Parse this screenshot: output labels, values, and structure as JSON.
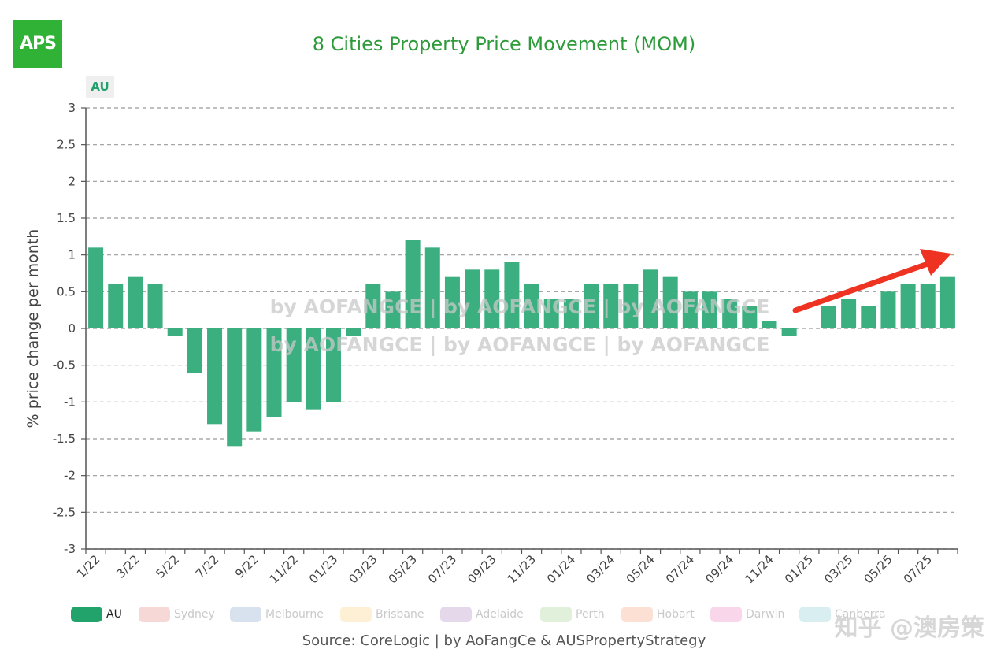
{
  "logo": "APS",
  "title": "8 Cities Property Price Movement (MOM)",
  "tag": "AU",
  "source": "Source: CoreLogic | by AoFangCe & AUSPropertyStrategy",
  "watermark_lines": [
    "by AOFANGCE | by AOFANGCE | by AOFANGCE",
    "by AOFANGCE | by AOFANGCE | by AOFANGCE"
  ],
  "corner_watermark": "知乎 @澳房策",
  "colors": {
    "bar": "#3baf80",
    "arrow": "#ee3322",
    "grid": "#999999"
  },
  "legend": [
    {
      "label": "AU",
      "color": "#22a36c",
      "active": true
    },
    {
      "label": "Sydney",
      "color": "#f6d8d6",
      "active": false
    },
    {
      "label": "Melbourne",
      "color": "#d8e2ee",
      "active": false
    },
    {
      "label": "Brisbane",
      "color": "#fdf0d4",
      "active": false
    },
    {
      "label": "Adelaide",
      "color": "#e4d8ea",
      "active": false
    },
    {
      "label": "Perth",
      "color": "#e1f0db",
      "active": false
    },
    {
      "label": "Hobart",
      "color": "#fde0d4",
      "active": false
    },
    {
      "label": "Darwin",
      "color": "#f9d6ea",
      "active": false
    },
    {
      "label": "Canberra",
      "color": "#d8eef0",
      "active": false
    }
  ],
  "chart_data": {
    "type": "bar",
    "title": "8 Cities Property Price Movement (MOM)",
    "ylabel": "% price change per month",
    "xlabel": "",
    "ylim": [
      -3,
      3
    ],
    "yticks": [
      "3",
      "2.5",
      "2",
      "1.5",
      "1",
      "0.5",
      "0",
      "-0.5",
      "-1",
      "-1.5",
      "-2",
      "-2.5",
      "-3"
    ],
    "grid": true,
    "categories": [
      "1/22",
      "2/22",
      "3/22",
      "4/22",
      "5/22",
      "6/22",
      "7/22",
      "8/22",
      "9/22",
      "10/22",
      "11/22",
      "12/22",
      "01/23",
      "02/23",
      "03/23",
      "04/23",
      "05/23",
      "06/23",
      "07/23",
      "08/23",
      "09/23",
      "10/23",
      "11/23",
      "12/23",
      "01/24",
      "02/24",
      "03/24",
      "04/24",
      "05/24",
      "06/24",
      "07/24",
      "08/24",
      "09/24",
      "10/24",
      "11/24",
      "12/24",
      "01/25",
      "02/25",
      "03/25",
      "04/25",
      "05/25",
      "06/25",
      "07/25",
      "08/25"
    ],
    "tick_labels": [
      "1/22",
      "",
      "3/22",
      "",
      "5/22",
      "",
      "7/22",
      "",
      "9/22",
      "",
      "11/22",
      "",
      "01/23",
      "",
      "03/23",
      "",
      "05/23",
      "",
      "07/23",
      "",
      "09/23",
      "",
      "11/23",
      "",
      "01/24",
      "",
      "03/24",
      "",
      "05/24",
      "",
      "07/24",
      "",
      "09/24",
      "",
      "11/24",
      "",
      "01/25",
      "",
      "03/25",
      "",
      "05/25",
      "",
      "07/25",
      ""
    ],
    "series": [
      {
        "name": "AU",
        "values": [
          1.1,
          0.6,
          0.7,
          0.6,
          -0.1,
          -0.6,
          -1.3,
          -1.6,
          -1.4,
          -1.2,
          -1.0,
          -1.1,
          -1.0,
          -0.1,
          0.6,
          0.5,
          1.2,
          1.1,
          0.7,
          0.8,
          0.8,
          0.9,
          0.6,
          0.4,
          0.4,
          0.6,
          0.6,
          0.6,
          0.8,
          0.7,
          0.5,
          0.5,
          0.4,
          0.3,
          0.1,
          -0.1,
          0.0,
          0.3,
          0.4,
          0.3,
          0.5,
          0.6,
          0.6,
          0.7
        ]
      }
    ],
    "legend_position": "bottom"
  }
}
